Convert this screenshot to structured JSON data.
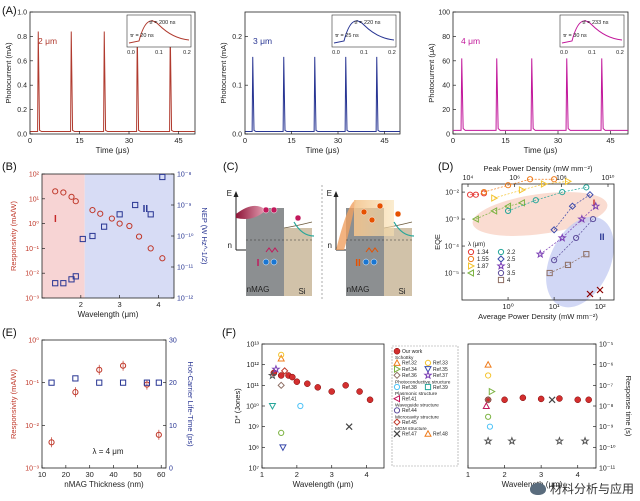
{
  "watermark": "材料分析与应用",
  "chart_data": [
    {
      "panel": "(A)",
      "type": "line",
      "subplots": [
        {
          "label": "2 μm",
          "color": "#b03a2e",
          "ylabel": "Photocurrent (mA)",
          "ylim": [
            0,
            1.0
          ],
          "yticks": [
            "0.0",
            "0.2",
            "0.4",
            "0.6",
            "0.8",
            "1.0"
          ],
          "tick_values": [
            0,
            0.2,
            0.4,
            0.6,
            0.8,
            1.0
          ],
          "xlabel": "Time (μs)",
          "xlim": [
            0,
            50
          ],
          "xticks": [
            "0",
            "15",
            "30",
            "45"
          ],
          "xtick_values": [
            0,
            15,
            30,
            45
          ],
          "pulse_times": [
            2.5,
            12.5,
            22.5,
            32.5,
            42.5
          ],
          "pulse_peak": 0.84,
          "baseline": 0.02,
          "inset": {
            "tau_r": "τr = 20 ns",
            "tau_f": "τf = 200 ns",
            "xticks": [
              "0.0",
              "0.1",
              "0.2"
            ]
          }
        },
        {
          "label": "3 μm",
          "color": "#283593",
          "ylabel": "Photocurrent (mA)",
          "ylim": [
            0,
            0.25
          ],
          "yticks": [
            "0.0",
            "0.1",
            "0.2"
          ],
          "tick_values": [
            0,
            0.1,
            0.2
          ],
          "xlabel": "Time (μs)",
          "xlim": [
            0,
            50
          ],
          "xticks": [
            "0",
            "15",
            "30",
            "45"
          ],
          "xtick_values": [
            0,
            15,
            30,
            45
          ],
          "pulse_times": [
            2.5,
            12.5,
            22.5,
            32.5,
            42.5
          ],
          "pulse_peak": 0.158,
          "baseline": 0.005,
          "inset": {
            "tau_r": "τr = 25 ns",
            "tau_f": "τf = 220 ns",
            "xticks": [
              "0.0",
              "0.1",
              "0.2"
            ]
          }
        },
        {
          "label": "4 μm",
          "color": "#c2189b",
          "ylabel": "Photocurrent (μA)",
          "ylim": [
            0,
            100
          ],
          "yticks": [
            "0",
            "20",
            "40",
            "60",
            "80",
            "100"
          ],
          "tick_values": [
            0,
            20,
            40,
            60,
            80,
            100
          ],
          "xlabel": "Time (μs)",
          "xlim": [
            0,
            50
          ],
          "xticks": [
            "0",
            "15",
            "30",
            "45"
          ],
          "xtick_values": [
            0,
            15,
            30,
            45
          ],
          "pulse_times": [
            2.5,
            12.5,
            22.5,
            32.5,
            42.5
          ],
          "pulse_peak": 62,
          "baseline": 3,
          "inset": {
            "tau_r": "τr = 30 ns",
            "tau_f": "τf = 233 ns",
            "xticks": [
              "0.0",
              "0.1",
              "0.2"
            ]
          }
        }
      ]
    },
    {
      "panel": "(B)",
      "type": "scatter",
      "xlabel": "Wavelength (μm)",
      "xlim": [
        1.0,
        4.4
      ],
      "xticks": [
        "2",
        "3",
        "4"
      ],
      "xtick_values": [
        2,
        3,
        4
      ],
      "ylabel_left": "Responsivity (mA/W)",
      "ylim_left_log": [
        -3,
        2
      ],
      "yticks_left": [
        "10⁻³",
        "10⁻²",
        "10⁻¹",
        "10⁰",
        "10¹",
        "10²"
      ],
      "ylabel_right": "NEP (W Hz^-1/2)",
      "ylim_right_log": [
        -12,
        -8
      ],
      "yticks_right": [
        "10⁻¹²",
        "10⁻¹¹",
        "10⁻¹⁰",
        "10⁻⁹",
        "10⁻⁸"
      ],
      "regions": [
        {
          "label": "I",
          "from": 1.0,
          "to": 2.1,
          "color": "#f7d4d4"
        },
        {
          "label": "II",
          "from": 2.1,
          "to": 4.4,
          "color": "#d7dcf5"
        }
      ],
      "responsivity": {
        "x": [
          1.34,
          1.55,
          1.76,
          1.87,
          2.3,
          2.5,
          2.8,
          3.0,
          3.25,
          3.5,
          3.8,
          4.1
        ],
        "y": [
          20,
          18,
          12,
          8,
          3.5,
          2.5,
          1.6,
          1.0,
          0.8,
          0.3,
          0.1,
          0.04
        ]
      },
      "nep": {
        "x": [
          1.34,
          1.55,
          1.76,
          1.87,
          2.05,
          2.3,
          2.6,
          3.0,
          3.4,
          3.8,
          4.1
        ],
        "y": [
          3e-12,
          3e-12,
          4e-12,
          5e-12,
          8e-11,
          1e-10,
          2e-10,
          5e-10,
          1e-09,
          5e-10,
          8e-09
        ]
      }
    },
    {
      "panel": "(C)",
      "type": "diagram",
      "left": {
        "roman": "I",
        "e_label": "E",
        "n_label": "n",
        "material": "nMAG",
        "substrate": "Si"
      },
      "right": {
        "roman": "II",
        "e_label": "E",
        "n_label": "n",
        "material": "nMAG",
        "substrate": "Si"
      }
    },
    {
      "panel": "(D)",
      "type": "scatter",
      "xlabel": "Average Power Density (mW mm⁻²)",
      "xlim_log": [
        -1,
        2.3
      ],
      "xticks": [
        "10⁰",
        "10¹",
        "10²"
      ],
      "xtick_values": [
        0,
        1,
        2
      ],
      "top_xlabel": "Peak Power Density (mW mm⁻²)",
      "top_xticks": [
        "10⁴",
        "10⁶",
        "10⁸",
        "10¹⁰"
      ],
      "ylabel": "EQE",
      "ylim_log": [
        -6,
        -1.7
      ],
      "yticks": [
        "10⁻⁵",
        "10⁻⁴",
        "10⁻³",
        "10⁻²"
      ],
      "legend_title": "λ (μm)",
      "series": [
        {
          "name": "1.34",
          "color": "#e53935",
          "x": [
            0.15,
            0.2,
            0.3
          ],
          "y": [
            0.008,
            0.008,
            0.009
          ]
        },
        {
          "name": "1.55",
          "color": "#ef7c1c",
          "x": [
            0.3,
            1,
            3,
            10
          ],
          "y": [
            0.01,
            0.018,
            0.03,
            0.03
          ]
        },
        {
          "name": "1.87",
          "color": "#f4c430",
          "x": [
            0.5,
            2,
            6,
            20
          ],
          "y": [
            0.006,
            0.012,
            0.02,
            0.025
          ]
        },
        {
          "name": "2",
          "color": "#7cb342",
          "x": [
            0.2,
            0.5,
            1,
            2
          ],
          "y": [
            0.001,
            0.002,
            0.003,
            0.004
          ]
        },
        {
          "name": "2.2",
          "color": "#26a69a",
          "x": [
            1,
            4,
            15,
            50
          ],
          "y": [
            0.002,
            0.005,
            0.01,
            0.015
          ]
        },
        {
          "name": "2.5",
          "color": "#3949ab",
          "x": [
            10,
            25,
            60
          ],
          "y": [
            0.0004,
            0.003,
            0.008
          ]
        },
        {
          "name": "3",
          "color": "#7b3fb5",
          "x": [
            5,
            15,
            40,
            80
          ],
          "y": [
            5e-05,
            0.0002,
            0.001,
            0.003
          ]
        },
        {
          "name": "3.5",
          "color": "#5e4e9c",
          "x": [
            10,
            30,
            70
          ],
          "y": [
            3e-05,
            0.0002,
            0.001
          ]
        },
        {
          "name": "4",
          "color": "#8d6e63",
          "x": [
            8,
            20,
            50
          ],
          "y": [
            1e-05,
            2e-05,
            5e-05
          ]
        }
      ],
      "region_labels": [
        "I",
        "II"
      ]
    },
    {
      "panel": "(E)",
      "type": "scatter",
      "xlabel": "nMAG Thickness (nm)",
      "xlim": [
        10,
        62
      ],
      "xticks": [
        "10",
        "20",
        "30",
        "40",
        "50",
        "60"
      ],
      "xtick_values": [
        10,
        20,
        30,
        40,
        50,
        60
      ],
      "ylabel_left": "Responsivity (mA/W)",
      "ylim_left_log": [
        -3,
        0
      ],
      "yticks_left": [
        "10⁻³",
        "10⁻²",
        "10⁻¹",
        "10⁰"
      ],
      "ylabel_right": "Hot-Carrier Life-Time (ps)",
      "ylim_right": [
        0,
        30
      ],
      "yticks_right": [
        "0",
        "10",
        "20",
        "30"
      ],
      "annotation": "λ = 4 μm",
      "responsivity": {
        "x": [
          14,
          24,
          34,
          44,
          54,
          59
        ],
        "y": [
          0.004,
          0.06,
          0.2,
          0.25,
          0.09,
          0.006
        ]
      },
      "lifetime": {
        "x": [
          14,
          24,
          34,
          44,
          54,
          59
        ],
        "y": [
          20,
          21,
          20,
          20,
          20,
          20
        ]
      }
    },
    {
      "panel": "(F)",
      "type": "scatter",
      "left": {
        "xlabel": "Wavelength (μm)",
        "xlim": [
          1,
          4.5
        ],
        "xticks": [
          "1",
          "2",
          "3",
          "4"
        ],
        "xtick_values": [
          1,
          2,
          3,
          4
        ],
        "ylabel": "D* (Jones)",
        "ylim_log": [
          7,
          13
        ],
        "yticks": [
          "10⁷",
          "10⁸",
          "10⁹",
          "10¹⁰",
          "10¹¹",
          "10¹²",
          "10¹³"
        ]
      },
      "right": {
        "xlabel": "Wavelength (μm)",
        "xlim": [
          1,
          4.5
        ],
        "xticks": [
          "1",
          "2",
          "3",
          "4"
        ],
        "xtick_values": [
          1,
          2,
          3,
          4
        ],
        "ylabel": "Response time (s)",
        "ylim_log": [
          -11,
          -5
        ],
        "yticks": [
          "10⁻¹¹",
          "10⁻¹⁰",
          "10⁻⁹",
          "10⁻⁸",
          "10⁻⁷",
          "10⁻⁶",
          "10⁻⁵"
        ]
      },
      "legend": {
        "entries": [
          {
            "section": "",
            "items": [
              "Our work"
            ]
          },
          {
            "section": "Schottky",
            "items": [
              "Ref.32",
              "Ref.33",
              "Ref.34",
              "Ref.35",
              "Ref.36",
              "Ref.37"
            ]
          },
          {
            "section": "Photoconductive structure",
            "items": [
              "Ref.38",
              "Ref.39"
            ]
          },
          {
            "section": "Plasmonic structure",
            "items": [
              "Ref.41"
            ]
          },
          {
            "section": "Waveguide structure",
            "items": [
              "Ref.44"
            ]
          },
          {
            "section": "Microcavity structure",
            "items": [
              "Ref.45"
            ]
          },
          {
            "section": "MGM structure",
            "items": [
              "Ref.47",
              "Ref.48"
            ]
          }
        ]
      },
      "our_work_D": {
        "x": [
          1.34,
          1.55,
          1.76,
          1.87,
          2.0,
          2.3,
          2.6,
          3.0,
          3.4,
          3.8,
          4.1
        ],
        "y": [
          400000000000.0,
          300000000000.0,
          300000000000.0,
          250000000000.0,
          150000000000.0,
          120000000000.0,
          80000000000.0,
          50000000000.0,
          100000000000.0,
          50000000000.0,
          20000000000.0
        ]
      },
      "our_work_t": {
        "x": [
          1.55,
          2.0,
          2.5,
          3.0,
          3.5,
          4.0,
          4.3
        ],
        "y": [
          2e-08,
          2e-08,
          2.5e-08,
          2.2e-08,
          2.3e-08,
          2e-08,
          2e-08
        ]
      }
    }
  ]
}
